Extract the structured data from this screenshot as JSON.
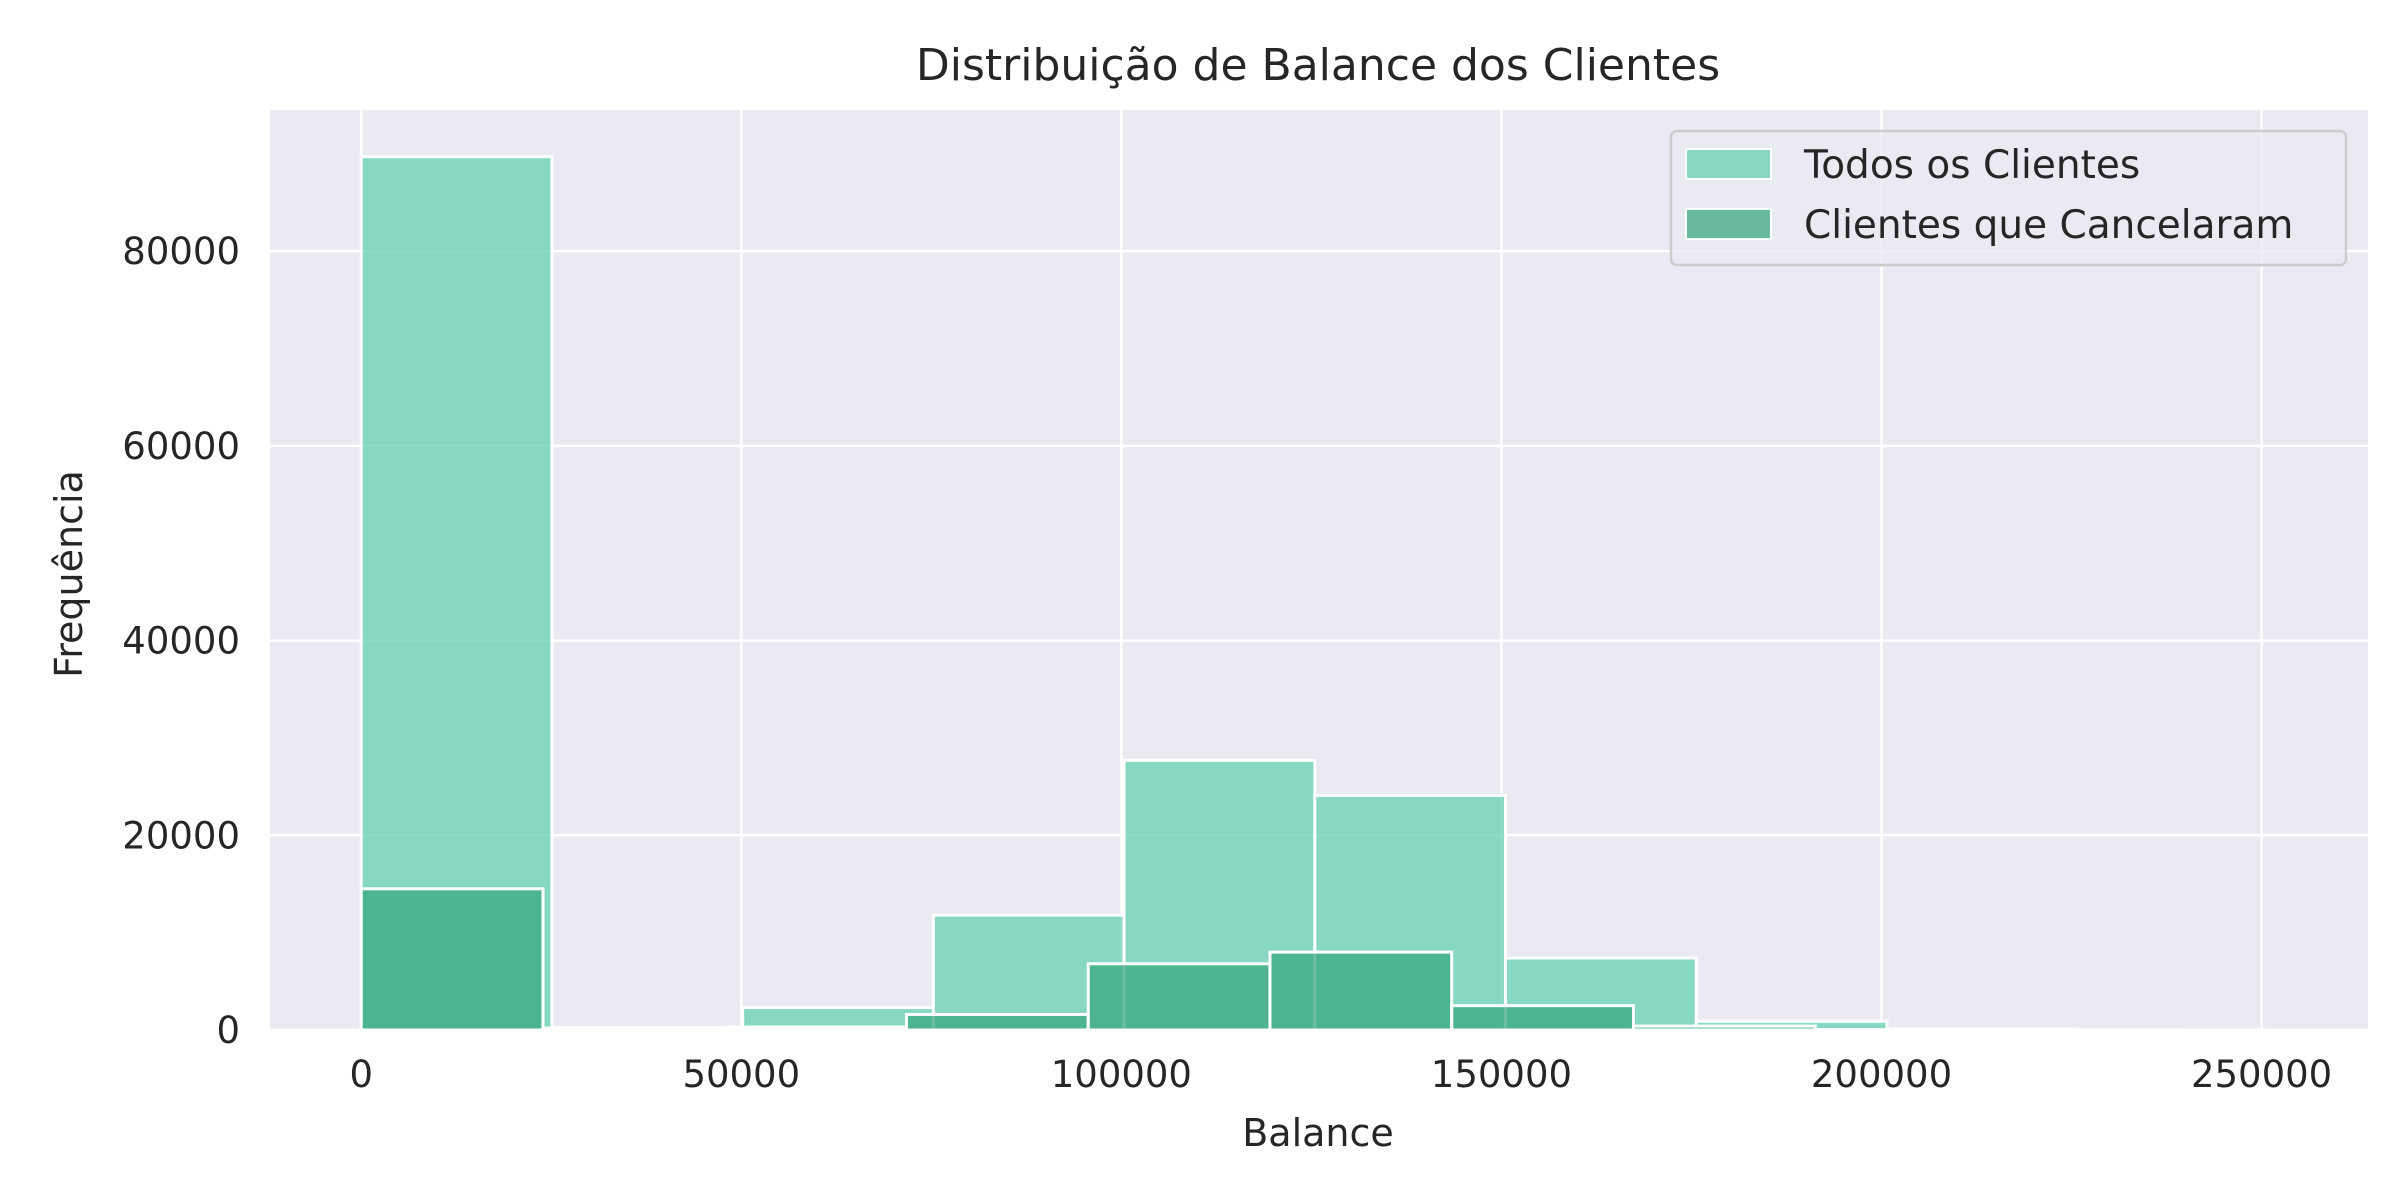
{
  "chart_data": {
    "type": "bar",
    "title": "Distribuição de Balance dos Clientes",
    "xlabel": "Balance",
    "ylabel": "Frequência",
    "xlim": [
      -12000,
      264000
    ],
    "ylim": [
      0,
      94500
    ],
    "xticks": [
      0,
      50000,
      100000,
      150000,
      200000,
      250000
    ],
    "xtick_labels": [
      "0",
      "50000",
      "100000",
      "150000",
      "200000",
      "250000"
    ],
    "yticks": [
      0,
      20000,
      40000,
      60000,
      80000
    ],
    "ytick_labels": [
      "0",
      "20000",
      "40000",
      "60000",
      "80000"
    ],
    "grid": true,
    "legend_position": "top-right",
    "series": [
      {
        "name": "Todos os Clientes",
        "color": "#66d1b2",
        "alpha": 0.75,
        "bins": [
          {
            "x0": 0,
            "x1": 25090,
            "value": 89700
          },
          {
            "x0": 25090,
            "x1": 50180,
            "value": 250
          },
          {
            "x0": 50180,
            "x1": 75270,
            "value": 2300
          },
          {
            "x0": 75270,
            "x1": 100360,
            "value": 11800
          },
          {
            "x0": 100360,
            "x1": 125450,
            "value": 27700
          },
          {
            "x0": 125450,
            "x1": 150540,
            "value": 24100
          },
          {
            "x0": 150540,
            "x1": 175630,
            "value": 7400
          },
          {
            "x0": 175630,
            "x1": 200720,
            "value": 900
          },
          {
            "x0": 200720,
            "x1": 225810,
            "value": 100
          },
          {
            "x0": 225810,
            "x1": 250900,
            "value": 10
          }
        ]
      },
      {
        "name": "Clientes que Cancelaram",
        "color": "#3aa880",
        "alpha": 0.75,
        "bins": [
          {
            "x0": 0,
            "x1": 23910,
            "value": 14500
          },
          {
            "x0": 23910,
            "x1": 47820,
            "value": 200
          },
          {
            "x0": 47820,
            "x1": 71730,
            "value": 300
          },
          {
            "x0": 71730,
            "x1": 95640,
            "value": 1600
          },
          {
            "x0": 95640,
            "x1": 119550,
            "value": 6800
          },
          {
            "x0": 119550,
            "x1": 143460,
            "value": 8000
          },
          {
            "x0": 143460,
            "x1": 167370,
            "value": 2500
          },
          {
            "x0": 167370,
            "x1": 191280,
            "value": 400
          },
          {
            "x0": 191280,
            "x1": 215190,
            "value": 40
          },
          {
            "x0": 215190,
            "x1": 239100,
            "value": 10
          }
        ]
      }
    ]
  }
}
